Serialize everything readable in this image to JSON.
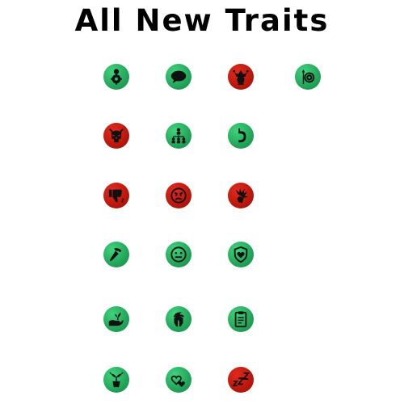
{
  "title": "All New Traits",
  "colors": {
    "positive": "#22a55a",
    "negative": "#bb170d"
  },
  "traits": [
    {
      "icon": "person-gear-icon",
      "tone": "positive"
    },
    {
      "icon": "speech-bubble-icon",
      "tone": "positive"
    },
    {
      "icon": "jester-icon",
      "tone": "negative"
    },
    {
      "icon": "spear-shield-icon",
      "tone": "positive"
    },
    {
      "icon": "demon-skull-icon",
      "tone": "negative"
    },
    {
      "icon": "hierarchy-icon",
      "tone": "positive"
    },
    {
      "icon": "stomach-icon",
      "tone": "positive"
    },
    {
      "icon": "thumbs-down-icon",
      "tone": "negative"
    },
    {
      "icon": "angry-face-icon",
      "tone": "negative"
    },
    {
      "icon": "breaking-hand-icon",
      "tone": "negative"
    },
    {
      "icon": "hammer-icon",
      "tone": "positive"
    },
    {
      "icon": "neutral-face-icon",
      "tone": "positive"
    },
    {
      "icon": "heart-shield-icon",
      "tone": "positive"
    },
    {
      "icon": "gardening-icon",
      "tone": "positive"
    },
    {
      "icon": "spartan-helmet-icon",
      "tone": "positive"
    },
    {
      "icon": "clipboard-icon",
      "tone": "positive"
    },
    {
      "icon": "plant-pot-icon",
      "tone": "positive"
    },
    {
      "icon": "hearts-icon",
      "tone": "positive"
    },
    {
      "icon": "sleep-icon",
      "tone": "negative"
    }
  ]
}
